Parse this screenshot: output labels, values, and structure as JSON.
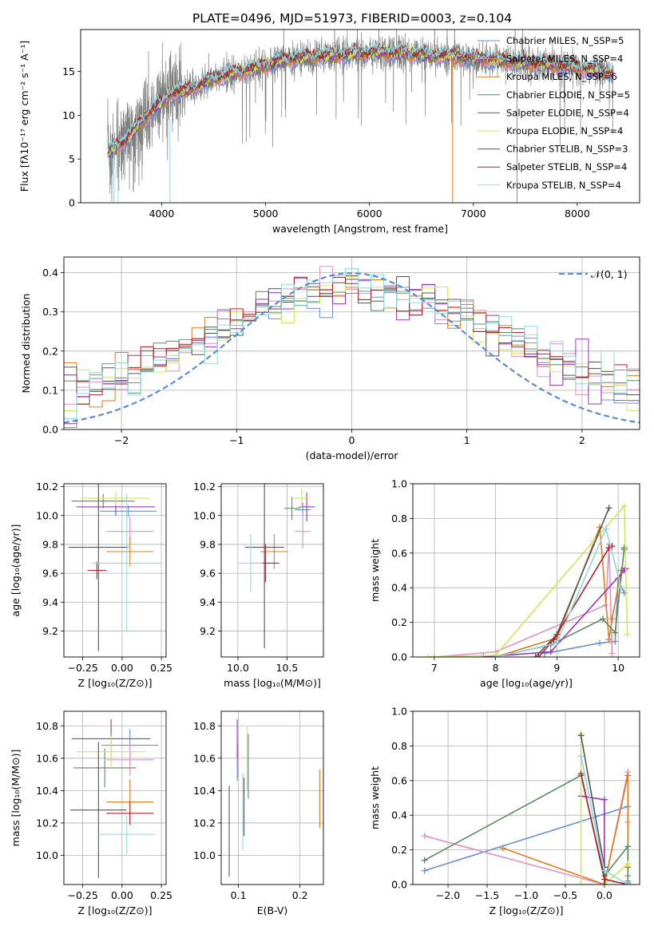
{
  "colors": {
    "Chabrier MILES": "#6a8fd6",
    "Salpeter MILES": "#e58fc4",
    "Kroupa MILES": "#e07b1e",
    "Chabrier ELODIE": "#5a8a62",
    "Salpeter ELODIE": "#9b35b8",
    "Kroupa ELODIE": "#cfe857",
    "Chabrier STELIB": "#555555",
    "Salpeter STELIB": "#b3222a",
    "Kroupa STELIB": "#8fd8e0",
    "gauss": "#5b8bd6",
    "grid": "#b0b0b0"
  },
  "chart_data": [
    {
      "id": "spectrum",
      "type": "line",
      "title": "PLATE=0496, MJD=51973, FIBERID=0003, z=0.104",
      "xlabel": "wavelength [Angstrom, rest frame]",
      "ylabel": "Flux [fλ10⁻¹⁷ erg cm⁻² s⁻¹ A⁻¹]",
      "xlim": [
        3220,
        8600
      ],
      "ylim": [
        0,
        19.8
      ],
      "xticks": [
        4000,
        5000,
        6000,
        7000,
        8000
      ],
      "yticks": [
        0,
        5,
        10,
        15
      ],
      "grid": false,
      "legend_position": "top-right",
      "legend": [
        "Chabrier MILES, N_SSP=5",
        "Salpeter MILES, N_SSP=4",
        "Kroupa MILES, N_SSP=6",
        "Chabrier ELODIE, N_SSP=5",
        "Salpeter ELODIE, N_SSP=4",
        "Kroupa ELODIE, N_SSP=4",
        "Chabrier STELIB, N_SSP=3",
        "Salpeter STELIB, N_SSP=4",
        "Kroupa STELIB, N_SSP=4"
      ],
      "model_continuum": {
        "x": [
          3480,
          3600,
          3700,
          3800,
          3900,
          4000,
          4100,
          4200,
          4300,
          4500,
          4700,
          4900,
          5100,
          5300,
          5500,
          5700,
          5900,
          6100,
          6300,
          6500,
          6700,
          6900,
          7100,
          7300,
          7500,
          7700,
          7900,
          8100,
          8350
        ],
        "y": [
          5.7,
          6.6,
          7.8,
          9.2,
          10.5,
          11.4,
          12.5,
          12.8,
          13.1,
          14.2,
          14.8,
          15.4,
          16.1,
          16.5,
          16.7,
          16.9,
          17.1,
          17.2,
          17.1,
          16.9,
          16.8,
          16.6,
          16.4,
          16.2,
          16.0,
          15.8,
          15.6,
          15.3,
          14.9
        ]
      }
    },
    {
      "id": "residuals",
      "type": "histogram",
      "xlabel": "(data-model)/error",
      "ylabel": "Normed distribution",
      "xlim": [
        -2.5,
        2.5
      ],
      "ylim": [
        0,
        0.44
      ],
      "xticks": [
        -2,
        -1,
        0,
        1,
        2
      ],
      "yticks": [
        0.0,
        0.1,
        0.2,
        0.3,
        0.4
      ],
      "grid": true,
      "legend": [
        "𝒩(0, 1)"
      ],
      "legend_position": "top-right",
      "bins": 45,
      "reference_curve": "standard normal density"
    },
    {
      "id": "age-vs-Z",
      "type": "errorbar",
      "xlabel": "Z [log₁₀(Z/Z⊙)]",
      "ylabel": "age  [log₁₀(age/yr)]",
      "xlim": [
        -0.37,
        0.28
      ],
      "ylim": [
        9.02,
        10.22
      ],
      "xticks": [
        -0.25,
        0.0,
        0.25
      ],
      "yticks": [
        9.2,
        9.4,
        9.6,
        9.8,
        10.0,
        10.2
      ],
      "grid": true,
      "points": [
        {
          "model": "Chabrier MILES",
          "x": 0.04,
          "xerr": 0.18,
          "y": 10.03,
          "yerr": 0.04
        },
        {
          "model": "Salpeter MILES",
          "x": 0.05,
          "xerr": 0.15,
          "y": 9.89,
          "yerr": 0.1
        },
        {
          "model": "Kroupa MILES",
          "x": 0.05,
          "xerr": 0.15,
          "y": 9.75,
          "yerr": 0.1
        },
        {
          "model": "Chabrier ELODIE",
          "x": -0.12,
          "xerr": 0.2,
          "y": 10.1,
          "yerr": 0.05
        },
        {
          "model": "Salpeter ELODIE",
          "x": -0.04,
          "xerr": 0.25,
          "y": 10.06,
          "yerr": 0.06
        },
        {
          "model": "Kroupa ELODIE",
          "x": -0.04,
          "xerr": 0.22,
          "y": 10.12,
          "yerr": 0.05
        },
        {
          "model": "Chabrier STELIB",
          "x": -0.15,
          "xerr": 0.19,
          "y": 9.78,
          "yerr": 0.72
        },
        {
          "model": "Salpeter STELIB",
          "x": -0.16,
          "xerr": 0.06,
          "y": 9.62,
          "yerr": 0.06
        },
        {
          "model": "Kroupa STELIB",
          "x": 0.03,
          "xerr": 0.22,
          "y": 9.67,
          "yerr": 0.48
        }
      ]
    },
    {
      "id": "age-vs-mass",
      "type": "errorbar",
      "xlabel": "mass [log₁₀(M/M⊙)]",
      "ylabel": "",
      "xlim": [
        9.83,
        10.87
      ],
      "ylim": [
        9.02,
        10.22
      ],
      "xticks": [
        10.0,
        10.5
      ],
      "yticks": [
        9.2,
        9.4,
        9.6,
        9.8,
        10.0,
        10.2
      ],
      "grid": true,
      "points": [
        {
          "model": "Chabrier MILES",
          "x": 10.66,
          "xerr": 0.08,
          "y": 10.04,
          "yerr": 0.05
        },
        {
          "model": "Salpeter MILES",
          "x": 10.66,
          "xerr": 0.08,
          "y": 9.89,
          "yerr": 0.12
        },
        {
          "model": "Kroupa MILES",
          "x": 10.37,
          "xerr": 0.14,
          "y": 9.75,
          "yerr": 0.12
        },
        {
          "model": "Chabrier ELODIE",
          "x": 10.55,
          "xerr": 0.08,
          "y": 10.05,
          "yerr": 0.08
        },
        {
          "model": "Salpeter ELODIE",
          "x": 10.7,
          "xerr": 0.08,
          "y": 10.06,
          "yerr": 0.1
        },
        {
          "model": "Kroupa ELODIE",
          "x": 10.65,
          "xerr": 0.08,
          "y": 10.12,
          "yerr": 0.07
        },
        {
          "model": "Chabrier STELIB",
          "x": 10.27,
          "xerr": 0.2,
          "y": 9.78,
          "yerr": 0.7
        },
        {
          "model": "Salpeter STELIB",
          "x": 10.28,
          "xerr": 0.14,
          "y": 9.67,
          "yerr": 0.13
        },
        {
          "model": "Kroupa STELIB",
          "x": 10.13,
          "xerr": 0.12,
          "y": 9.67,
          "yerr": 0.2
        }
      ]
    },
    {
      "id": "weight-vs-age",
      "type": "line",
      "xlabel": "age  [log₁₀(age/yr)]",
      "ylabel": "mass weight",
      "xlim": [
        6.65,
        10.35
      ],
      "ylim": [
        0,
        1.0
      ],
      "xticks": [
        7,
        8,
        9,
        10
      ],
      "yticks": [
        0.0,
        0.2,
        0.4,
        0.6,
        0.8,
        1.0
      ],
      "grid": true,
      "series": [
        {
          "model": "Chabrier MILES",
          "x": [
            8.8,
            9.7,
            9.95,
            10.0,
            10.1
          ],
          "y": [
            0.02,
            0.08,
            0.09,
            0.45,
            0.37
          ]
        },
        {
          "model": "Salpeter MILES",
          "x": [
            7.0,
            8.0,
            9.8,
            9.85,
            9.9
          ],
          "y": [
            0.0,
            0.03,
            0.3,
            0.65,
            0.02
          ]
        },
        {
          "model": "Kroupa MILES",
          "x": [
            8.0,
            9.0,
            9.7,
            9.85,
            9.9,
            10.05
          ],
          "y": [
            0.0,
            0.11,
            0.75,
            0.1,
            0.22,
            0.5
          ]
        },
        {
          "model": "Chabrier ELODIE",
          "x": [
            8.0,
            8.9,
            9.75,
            9.95,
            10.1,
            10.1
          ],
          "y": [
            0.0,
            0.07,
            0.22,
            0.14,
            0.63,
            0.62
          ]
        },
        {
          "model": "Salpeter ELODIE",
          "x": [
            7.8,
            8.9,
            10.1,
            10.12
          ],
          "y": [
            0.0,
            0.03,
            0.5,
            0.51
          ]
        },
        {
          "model": "Kroupa ELODIE",
          "x": [
            6.9,
            8.0,
            9.6,
            10.1,
            10.15
          ],
          "y": [
            0.0,
            0.01,
            0.67,
            0.87,
            0.13
          ]
        },
        {
          "model": "Chabrier STELIB",
          "x": [
            8.65,
            9.0,
            9.85
          ],
          "y": [
            0.0,
            0.13,
            0.86
          ]
        },
        {
          "model": "Salpeter STELIB",
          "x": [
            8.7,
            8.95,
            9.85,
            9.9
          ],
          "y": [
            0.0,
            0.1,
            0.63,
            0.64
          ]
        },
        {
          "model": "Kroupa STELIB",
          "x": [
            8.0,
            9.0,
            9.8,
            10.05
          ],
          "y": [
            0.0,
            0.08,
            0.74,
            0.4
          ]
        }
      ]
    },
    {
      "id": "mass-vs-Z",
      "type": "errorbar",
      "xlabel": "Z [log₁₀(Z/Z⊙)]",
      "ylabel": "mass [log₁₀(M/M⊙)]",
      "xlim": [
        -0.37,
        0.28
      ],
      "ylim": [
        9.82,
        10.89
      ],
      "xticks": [
        -0.25,
        0.0,
        0.25
      ],
      "yticks": [
        10.0,
        10.2,
        10.4,
        10.6,
        10.8
      ],
      "grid": true,
      "points": [
        {
          "model": "Chabrier MILES",
          "x": 0.05,
          "xerr": 0.18,
          "y": 10.68,
          "yerr": 0.1
        },
        {
          "model": "Salpeter MILES",
          "x": 0.05,
          "xerr": 0.15,
          "y": 10.59,
          "yerr": 0.1
        },
        {
          "model": "Kroupa MILES",
          "x": 0.05,
          "xerr": 0.15,
          "y": 10.33,
          "yerr": 0.14
        },
        {
          "model": "Chabrier ELODIE",
          "x": -0.11,
          "xerr": 0.2,
          "y": 10.54,
          "yerr": 0.12
        },
        {
          "model": "Salpeter ELODIE",
          "x": -0.07,
          "xerr": 0.25,
          "y": 10.72,
          "yerr": 0.12
        },
        {
          "model": "Kroupa ELODIE",
          "x": -0.07,
          "xerr": 0.22,
          "y": 10.64,
          "yerr": 0.1
        },
        {
          "model": "Chabrier STELIB",
          "x": -0.15,
          "xerr": 0.18,
          "y": 10.28,
          "yerr": 0.42
        },
        {
          "model": "Salpeter STELIB",
          "x": 0.05,
          "xerr": 0.15,
          "y": 10.26,
          "yerr": 0.07
        },
        {
          "model": "Kroupa STELIB",
          "x": 0.03,
          "xerr": 0.18,
          "y": 10.13,
          "yerr": 0.12
        }
      ]
    },
    {
      "id": "mass-vs-EBV",
      "type": "errorbar",
      "xlabel": "E(B-V)",
      "ylabel": "",
      "xlim": [
        0.072,
        0.238
      ],
      "ylim": [
        9.82,
        10.89
      ],
      "xticks": [
        0.1,
        0.2
      ],
      "yticks": [
        10.0,
        10.2,
        10.4,
        10.6,
        10.8
      ],
      "grid": true,
      "points": [
        {
          "model": "Chabrier MILES",
          "x": 0.098,
          "xerr": 0.0,
          "y": 10.6,
          "yerr": 0.14
        },
        {
          "model": "Salpeter MILES",
          "x": 0.099,
          "xerr": 0.0,
          "y": 10.58,
          "yerr": 0.1
        },
        {
          "model": "Kroupa MILES",
          "x": 0.232,
          "xerr": 0.0,
          "y": 10.35,
          "yerr": 0.18
        },
        {
          "model": "Chabrier ELODIE",
          "x": 0.116,
          "xerr": 0.0,
          "y": 10.55,
          "yerr": 0.2
        },
        {
          "model": "Salpeter ELODIE",
          "x": 0.098,
          "xerr": 0.0,
          "y": 10.72,
          "yerr": 0.12
        },
        {
          "model": "Kroupa ELODIE",
          "x": 0.114,
          "xerr": 0.0,
          "y": 10.6,
          "yerr": 0.2
        },
        {
          "model": "Chabrier STELIB",
          "x": 0.085,
          "xerr": 0.0,
          "y": 10.15,
          "yerr": 0.28
        },
        {
          "model": "Salpeter STELIB",
          "x": 0.109,
          "xerr": 0.0,
          "y": 10.3,
          "yerr": 0.18
        },
        {
          "model": "Kroupa STELIB",
          "x": 0.107,
          "xerr": 0.0,
          "y": 10.27,
          "yerr": 0.24
        }
      ]
    },
    {
      "id": "weight-vs-Z",
      "type": "line",
      "xlabel": "Z [log₁₀(Z/Z⊙)]",
      "ylabel": "mass weight",
      "xlim": [
        -2.45,
        0.45
      ],
      "ylim": [
        0,
        1.0
      ],
      "xticks": [
        -2.0,
        -1.5,
        -1.0,
        -0.5,
        0.0
      ],
      "yticks": [
        0.0,
        0.2,
        0.4,
        0.6,
        0.8,
        1.0
      ],
      "grid": true,
      "series": [
        {
          "model": "Chabrier MILES",
          "x": [
            -2.3,
            0.3,
            0.3,
            0.3
          ],
          "y": [
            0.08,
            0.45,
            0.02,
            0.01
          ]
        },
        {
          "model": "Salpeter MILES",
          "x": [
            -2.3,
            0.0,
            0.3,
            0.3
          ],
          "y": [
            0.28,
            0.0,
            0.65,
            0.36
          ]
        },
        {
          "model": "Kroupa MILES",
          "x": [
            -1.3,
            0.0,
            0.3,
            0.3,
            0.3
          ],
          "y": [
            0.21,
            0.0,
            0.63,
            0.1,
            0.05
          ]
        },
        {
          "model": "Chabrier ELODIE",
          "x": [
            -2.3,
            -0.3,
            0.0,
            0.3,
            0.3
          ],
          "y": [
            0.14,
            0.63,
            0.05,
            0.22,
            0.0
          ]
        },
        {
          "model": "Salpeter ELODIE",
          "x": [
            -0.3,
            0.0,
            0.0
          ],
          "y": [
            0.51,
            0.49,
            0.0
          ]
        },
        {
          "model": "Kroupa ELODIE",
          "x": [
            -0.3,
            -0.3,
            0.0,
            0.3
          ],
          "y": [
            0.87,
            0.0,
            0.0,
            0.12
          ]
        },
        {
          "model": "Chabrier STELIB",
          "x": [
            -0.3,
            0.0,
            0.0
          ],
          "y": [
            0.86,
            0.1,
            0.0
          ]
        },
        {
          "model": "Salpeter STELIB",
          "x": [
            -0.3,
            0.0,
            0.3
          ],
          "y": [
            0.64,
            0.03,
            0.0
          ]
        },
        {
          "model": "Kroupa STELIB",
          "x": [
            -0.3,
            0.0,
            0.3
          ],
          "y": [
            0.74,
            0.08,
            0.0
          ]
        }
      ]
    }
  ]
}
